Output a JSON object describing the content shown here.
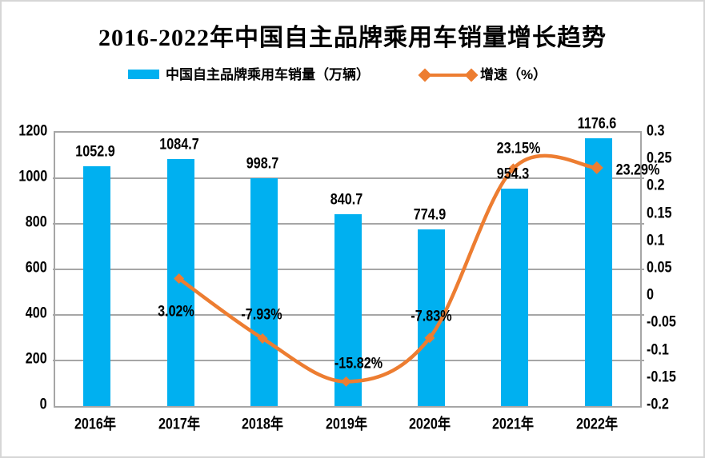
{
  "title": "2016-2022年中国自主品牌乘用车销量增长趋势",
  "legend": {
    "bar_label": "中国自主品牌乘用车销量（万辆）",
    "line_label": "增速（%）"
  },
  "colors": {
    "bar": "#00b0f0",
    "line": "#ed7d31",
    "grid": "#a6a6a6",
    "text": "#000000"
  },
  "chart_data": {
    "type": "bar",
    "subtype": "bar-with-line-combo",
    "title": "2016-2022年中国自主品牌乘用车销量增长趋势",
    "categories": [
      "2016年",
      "2017年",
      "2018年",
      "2019年",
      "2020年",
      "2021年",
      "2022年"
    ],
    "series": [
      {
        "name": "中国自主品牌乘用车销量（万辆）",
        "type": "bar",
        "y_axis": "left",
        "color": "#00b0f0",
        "values": [
          1052.9,
          1084.7,
          998.7,
          840.7,
          774.9,
          954.3,
          1176.6
        ],
        "labels": [
          "1052.9",
          "1084.7",
          "998.7",
          "840.7",
          "774.9",
          "954.3",
          "1176.6"
        ]
      },
      {
        "name": "增速（%）",
        "type": "line",
        "y_axis": "right",
        "color": "#ed7d31",
        "start_category_index": 1,
        "values": [
          0.0302,
          -0.0793,
          -0.1582,
          -0.0783,
          0.2315,
          0.2329
        ],
        "labels": [
          "3.02%",
          "-7.93%",
          "-15.82%",
          "-7.83%",
          "23.15%",
          "23.29%"
        ]
      }
    ],
    "left_axis": {
      "min": 0,
      "max": 1200,
      "step": 200,
      "tick_labels": [
        "1200",
        "1000",
        "800",
        "600",
        "400",
        "200",
        "0"
      ]
    },
    "right_axis": {
      "min": -0.2,
      "max": 0.3,
      "step": 0.05,
      "tick_labels": [
        "0.3",
        "0.25",
        "0.2",
        "0.15",
        "0.1",
        "0.05",
        "0",
        "-0.05",
        "-0.1",
        "-0.15",
        "-0.2"
      ]
    },
    "grid": true,
    "legend_position": "top"
  }
}
